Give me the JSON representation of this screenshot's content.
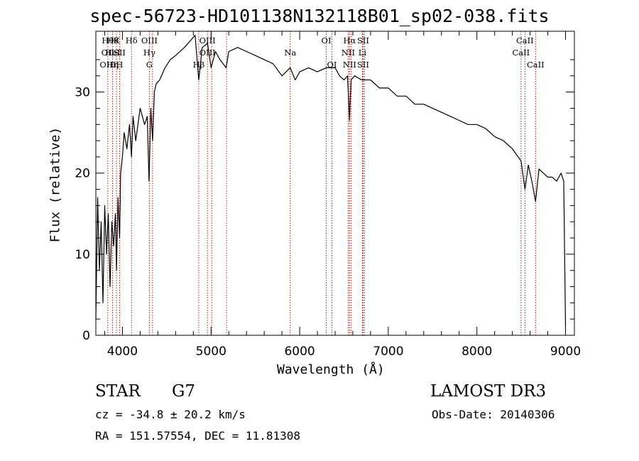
{
  "chart_data": {
    "type": "line",
    "title": "spec-56723-HD101138N132118B01_sp02-038.fits",
    "xlabel": "Wavelength (Å)",
    "ylabel": "Flux (relative)",
    "xlim": [
      3700,
      9100
    ],
    "ylim": [
      0,
      37.5
    ],
    "xticks": [
      4000,
      5000,
      6000,
      7000,
      8000,
      9000
    ],
    "yticks": [
      0,
      10,
      20,
      30
    ],
    "series": [
      {
        "name": "spectrum",
        "x": [
          3700,
          3720,
          3740,
          3760,
          3780,
          3800,
          3820,
          3840,
          3860,
          3880,
          3900,
          3920,
          3933,
          3950,
          3968,
          3980,
          4000,
          4020,
          4050,
          4080,
          4102,
          4120,
          4150,
          4200,
          4250,
          4280,
          4300,
          4320,
          4340,
          4360,
          4380,
          4420,
          4480,
          4540,
          4600,
          4700,
          4780,
          4820,
          4861,
          4900,
          4960,
          5000,
          5050,
          5100,
          5170,
          5200,
          5300,
          5400,
          5500,
          5600,
          5700,
          5800,
          5893,
          5950,
          6000,
          6100,
          6200,
          6300,
          6400,
          6450,
          6500,
          6540,
          6563,
          6580,
          6620,
          6700,
          6800,
          6900,
          7000,
          7100,
          7200,
          7300,
          7400,
          7500,
          7600,
          7700,
          7800,
          7900,
          8000,
          8100,
          8200,
          8300,
          8400,
          8498,
          8542,
          8580,
          8620,
          8662,
          8700,
          8750,
          8800,
          8850,
          8900,
          8950,
          8980,
          9000
        ],
        "y": [
          2.0,
          17.0,
          8.0,
          14.0,
          4.0,
          16.0,
          10.0,
          15.0,
          6.0,
          14.0,
          11.0,
          15.0,
          8.0,
          17.0,
          12.0,
          20.0,
          22.0,
          25.0,
          23.0,
          26.0,
          22.0,
          27.0,
          24.0,
          28.0,
          26.0,
          27.0,
          19.0,
          28.0,
          24.0,
          30.0,
          31.0,
          31.5,
          33.0,
          34.0,
          34.5,
          35.5,
          36.5,
          37.0,
          31.5,
          35.5,
          36.0,
          33.0,
          35.0,
          34.0,
          33.0,
          35.0,
          35.5,
          35.0,
          34.5,
          34.0,
          33.5,
          32.0,
          33.0,
          31.5,
          32.5,
          33.0,
          32.5,
          33.0,
          33.0,
          32.0,
          31.5,
          32.0,
          26.5,
          31.5,
          32.0,
          31.5,
          31.5,
          30.5,
          30.5,
          29.5,
          29.5,
          28.5,
          28.5,
          28.0,
          27.5,
          27.0,
          26.5,
          26.0,
          26.0,
          25.5,
          24.5,
          24.0,
          23.0,
          21.5,
          18.0,
          21.0,
          19.0,
          16.5,
          20.5,
          20.0,
          19.5,
          19.5,
          19.0,
          20.0,
          19.0,
          1.0
        ]
      }
    ],
    "lines": [
      {
        "wl": 3835,
        "labels": [
          "Hθ",
          "OII",
          "OIII"
        ]
      },
      {
        "wl": 3889,
        "labels": [
          "Hθ",
          "HeI",
          "Hη"
        ]
      },
      {
        "wl": 3933,
        "labels": [
          "K",
          "",
          ""
        ]
      },
      {
        "wl": 3968,
        "labels": [
          "",
          "SII",
          "H"
        ]
      },
      {
        "wl": 4102,
        "labels": [
          "Hδ",
          "",
          ""
        ]
      },
      {
        "wl": 4304,
        "labels": [
          "OIII",
          "Hγ",
          "G"
        ]
      },
      {
        "wl": 4340,
        "labels": [
          "",
          "",
          ""
        ]
      },
      {
        "wl": 4861,
        "labels": [
          "",
          "",
          "Hβ"
        ]
      },
      {
        "wl": 4959,
        "labels": [
          "OIII",
          "OIII",
          ""
        ]
      },
      {
        "wl": 5007,
        "labels": [
          "",
          "",
          ""
        ]
      },
      {
        "wl": 5175,
        "labels": [
          "",
          "",
          ""
        ]
      },
      {
        "wl": 5893,
        "labels": [
          "",
          "Na",
          ""
        ]
      },
      {
        "wl": 6300,
        "labels": [
          "OI",
          "",
          ""
        ]
      },
      {
        "wl": 6364,
        "labels": [
          "",
          "",
          "OI"
        ]
      },
      {
        "wl": 6548,
        "labels": [
          "",
          "NII",
          ""
        ]
      },
      {
        "wl": 6563,
        "labels": [
          "Hα",
          "",
          "NII"
        ]
      },
      {
        "wl": 6583,
        "labels": [
          "",
          "",
          ""
        ]
      },
      {
        "wl": 6708,
        "labels": [
          "",
          "Li",
          ""
        ]
      },
      {
        "wl": 6716,
        "labels": [
          "SII",
          "",
          "SII"
        ]
      },
      {
        "wl": 6731,
        "labels": [
          "",
          "",
          ""
        ]
      },
      {
        "wl": 8498,
        "labels": [
          "",
          "CaII",
          ""
        ]
      },
      {
        "wl": 8542,
        "labels": [
          "CaII",
          "",
          ""
        ]
      },
      {
        "wl": 8662,
        "labels": [
          "",
          "",
          "CaII"
        ]
      }
    ],
    "colors": {
      "spectrum": "#000000",
      "lines": "#b00000",
      "axes": "#000000"
    }
  },
  "info": {
    "object_type": "STAR",
    "subclass": "G7",
    "survey": "LAMOST DR3",
    "cz": "cz = -34.8 ± 20.2 km/s",
    "obs_date": "Obs-Date: 20140306",
    "coords": "RA = 151.57554, DEC =  11.81308"
  }
}
